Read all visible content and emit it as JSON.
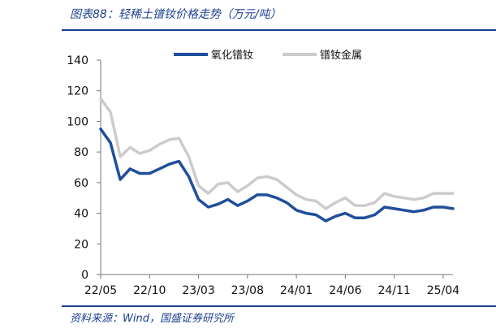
{
  "header": {
    "title": "图表88：轻稀土镨钕价格走势（万元/吨）"
  },
  "footer": {
    "source": "资料来源：Wind，国盛证券研究所"
  },
  "colors": {
    "series1": "#1f4e9c",
    "series2": "#cccccc",
    "accent": "#1d3f8f"
  },
  "chart_data": {
    "type": "line",
    "title": "",
    "xlabel": "",
    "ylabel": "",
    "ylim": [
      0,
      140
    ],
    "yticks": [
      0,
      20,
      40,
      60,
      80,
      100,
      120,
      140
    ],
    "xticks": [
      "22/05",
      "22/10",
      "23/03",
      "23/08",
      "24/01",
      "24/06",
      "24/11",
      "25/04"
    ],
    "xlim": [
      "2022-05",
      "2025-05"
    ],
    "grid": false,
    "legend": "top-right",
    "x": [
      "2022-05",
      "2022-06",
      "2022-07",
      "2022-08",
      "2022-09",
      "2022-10",
      "2022-11",
      "2022-12",
      "2023-01",
      "2023-02",
      "2023-03",
      "2023-04",
      "2023-05",
      "2023-06",
      "2023-07",
      "2023-08",
      "2023-09",
      "2023-10",
      "2023-11",
      "2023-12",
      "2024-01",
      "2024-02",
      "2024-03",
      "2024-04",
      "2024-05",
      "2024-06",
      "2024-07",
      "2024-08",
      "2024-09",
      "2024-10",
      "2024-11",
      "2024-12",
      "2025-01",
      "2025-02",
      "2025-03",
      "2025-04",
      "2025-05"
    ],
    "series": [
      {
        "name": "氧化镨钕",
        "values": [
          95,
          86,
          62,
          69,
          66,
          66,
          69,
          72,
          74,
          64,
          49,
          44,
          46,
          49,
          45,
          48,
          52,
          52,
          50,
          47,
          42,
          40,
          39,
          35,
          38,
          40,
          37,
          37,
          39,
          44,
          43,
          42,
          41,
          42,
          44,
          44,
          43
        ]
      },
      {
        "name": "镨钕金属",
        "values": [
          115,
          106,
          77,
          83,
          79,
          81,
          85,
          88,
          89,
          77,
          58,
          53,
          59,
          60,
          54,
          58,
          63,
          64,
          62,
          57,
          52,
          49,
          48,
          43,
          47,
          50,
          45,
          45,
          47,
          53,
          51,
          50,
          49,
          50,
          53,
          53,
          53
        ]
      }
    ]
  }
}
